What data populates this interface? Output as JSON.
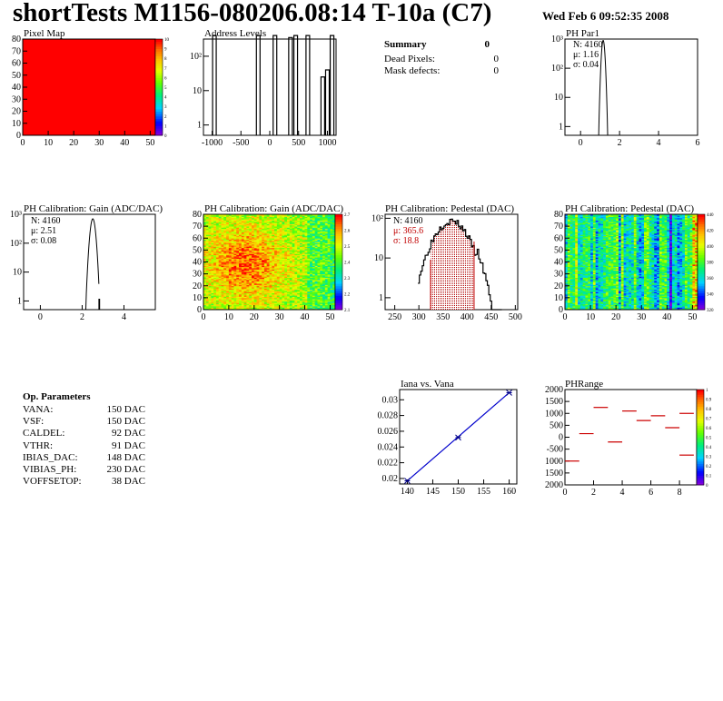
{
  "title": "shortTests M1156-080206.08:14 T-10a (C7)",
  "datetime": "Wed Feb  6 09:52:35 2008",
  "summary": {
    "title": "Summary",
    "title_value": "0",
    "rows": [
      {
        "label": "Dead Pixels:",
        "value": "0"
      },
      {
        "label": "Mask defects:",
        "value": "0"
      }
    ]
  },
  "op_params": {
    "title": "Op. Parameters",
    "rows": [
      {
        "label": "VANA:",
        "value": "150 DAC"
      },
      {
        "label": "VSF:",
        "value": "150 DAC"
      },
      {
        "label": "CALDEL:",
        "value": "92 DAC"
      },
      {
        "label": "VTHR:",
        "value": "91 DAC"
      },
      {
        "label": "IBIAS_DAC:",
        "value": "148 DAC"
      },
      {
        "label": "VIBIAS_PH:",
        "value": "230 DAC"
      },
      {
        "label": "VOFFSETOP:",
        "value": "38 DAC"
      }
    ]
  },
  "chart_data": [
    {
      "id": "pixelmap",
      "type": "heatmap",
      "title": "Pixel Map",
      "x_ticks": [
        "0",
        "10",
        "20",
        "30",
        "40",
        "50"
      ],
      "y_ticks": [
        "0",
        "10",
        "20",
        "30",
        "40",
        "50",
        "60",
        "70",
        "80"
      ],
      "xlim": [
        0,
        52
      ],
      "ylim": [
        0,
        80
      ],
      "z_ticks": [
        "0",
        "1",
        "2",
        "3",
        "4",
        "5",
        "6",
        "7",
        "8",
        "9",
        "10"
      ],
      "uniform_value": 10,
      "fill_color": "#ff0000"
    },
    {
      "id": "address",
      "type": "bar",
      "title": "Address Levels",
      "x_ticks": [
        "-1000",
        "-500",
        "0",
        "500",
        "1000"
      ],
      "y_ticks": [
        "1",
        "10",
        "10²"
      ],
      "xlim": [
        -1150,
        1150
      ],
      "log_y": true,
      "peaks": [
        {
          "x": -960,
          "y": 400
        },
        {
          "x": -200,
          "y": 400
        },
        {
          "x": 90,
          "y": 400
        },
        {
          "x": 360,
          "y": 350
        },
        {
          "x": 450,
          "y": 400
        },
        {
          "x": 660,
          "y": 400
        },
        {
          "x": 920,
          "y": 25
        },
        {
          "x": 1000,
          "y": 40
        },
        {
          "x": 1080,
          "y": 400
        }
      ]
    },
    {
      "id": "phpar1",
      "type": "bar",
      "title": "PH Par1",
      "x_ticks": [
        "0",
        "2",
        "4",
        "6"
      ],
      "y_ticks": [
        "1",
        "10",
        "10²",
        "10³"
      ],
      "xlim": [
        -0.8,
        6
      ],
      "stats": {
        "N": "N: 4160",
        "mu": "μ: 1.16",
        "sigma": "σ: 0.04"
      }
    },
    {
      "id": "gainhist",
      "type": "bar",
      "title": "PH Calibration: Gain (ADC/DAC)",
      "x_ticks": [
        "0",
        "2",
        "4"
      ],
      "y_ticks": [
        "1",
        "10",
        "10²",
        "10³"
      ],
      "xlim": [
        -0.8,
        5.5
      ],
      "stats": {
        "N": "N: 4160",
        "mu": "μ: 2.51",
        "sigma": "σ: 0.08"
      }
    },
    {
      "id": "gainmap",
      "type": "heatmap",
      "title": "PH Calibration: Gain (ADC/DAC)",
      "x_ticks": [
        "0",
        "10",
        "20",
        "30",
        "40",
        "50"
      ],
      "y_ticks": [
        "0",
        "10",
        "20",
        "30",
        "40",
        "50",
        "60",
        "70",
        "80"
      ],
      "xlim": [
        0,
        52
      ],
      "ylim": [
        0,
        80
      ],
      "z_ticks": [
        "2.1",
        "2.2",
        "2.3",
        "2.4",
        "2.5",
        "2.6",
        "2.7"
      ]
    },
    {
      "id": "pedhist",
      "type": "bar",
      "title": "PH Calibration: Pedestal (DAC)",
      "x_ticks": [
        "250",
        "300",
        "350",
        "400",
        "450",
        "500"
      ],
      "y_ticks": [
        "1",
        "10",
        "10²"
      ],
      "xlim": [
        230,
        505
      ],
      "stats": {
        "N": "N: 4160",
        "mu": "μ: 365.6",
        "sigma": "σ: 18.8"
      },
      "mean": 365.6,
      "sigma": 18.8
    },
    {
      "id": "pedmap",
      "type": "heatmap",
      "title": "PH Calibration: Pedestal (DAC)",
      "x_ticks": [
        "0",
        "10",
        "20",
        "30",
        "40",
        "50"
      ],
      "y_ticks": [
        "0",
        "10",
        "20",
        "30",
        "40",
        "50",
        "60",
        "70",
        "80"
      ],
      "xlim": [
        0,
        52
      ],
      "ylim": [
        0,
        80
      ],
      "z_ticks": [
        "320",
        "340",
        "360",
        "380",
        "400",
        "420",
        "440"
      ]
    },
    {
      "id": "iana",
      "type": "line",
      "title": "Iana vs. Vana",
      "x_ticks": [
        "140",
        "145",
        "150",
        "155",
        "160"
      ],
      "y_ticks": [
        "0.02",
        "0.022",
        "0.024",
        "0.026",
        "0.028",
        "0.03"
      ],
      "xlim": [
        138.5,
        161.5
      ],
      "ylim": [
        0.0193,
        0.0313
      ],
      "x": [
        140,
        150,
        160
      ],
      "y": [
        0.0197,
        0.0252,
        0.0309
      ]
    },
    {
      "id": "phrange",
      "type": "scatter",
      "title": "PHRange",
      "x_ticks": [
        "0",
        "2",
        "4",
        "6",
        "8"
      ],
      "y_ticks": [
        "2000",
        "1500",
        "1000",
        "500",
        "0",
        "-500",
        "1000",
        "1500",
        "2000"
      ],
      "xlim": [
        0,
        9.2
      ],
      "ylim": [
        -2000,
        2000
      ],
      "z_ticks": [
        "0",
        "0.1",
        "0.2",
        "0.3",
        "0.4",
        "0.5",
        "0.6",
        "0.7",
        "0.8",
        "0.9",
        "1"
      ],
      "segments": [
        {
          "x": 0.5,
          "y": -1000
        },
        {
          "x": 1.5,
          "y": 150
        },
        {
          "x": 2.5,
          "y": 1250
        },
        {
          "x": 3.5,
          "y": -200
        },
        {
          "x": 4.5,
          "y": 1100
        },
        {
          "x": 5.5,
          "y": 700
        },
        {
          "x": 6.5,
          "y": 900
        },
        {
          "x": 7.5,
          "y": 400
        },
        {
          "x": 8.5,
          "y": 1000
        },
        {
          "x": 8.5,
          "y": -750
        }
      ]
    }
  ]
}
